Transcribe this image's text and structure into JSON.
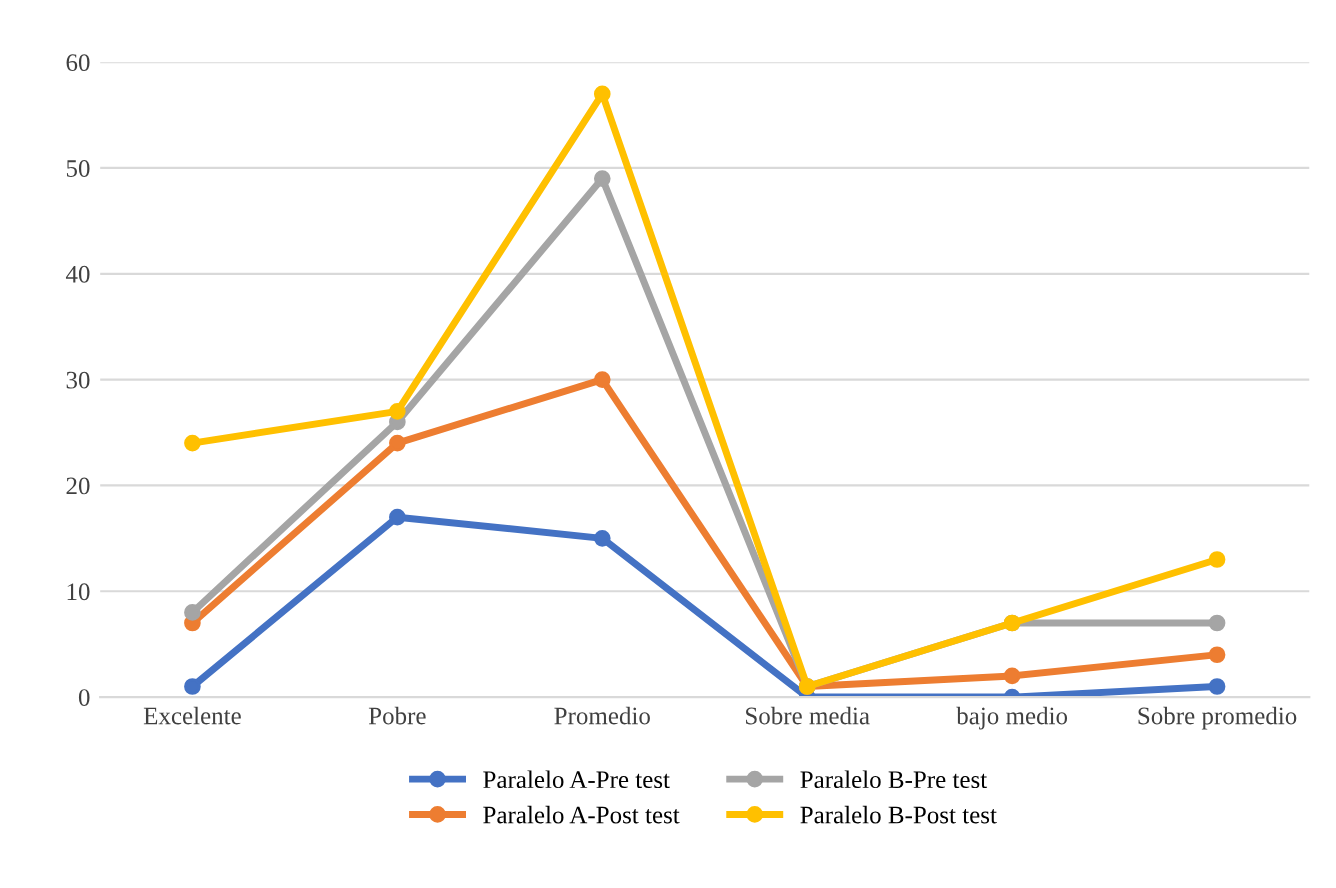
{
  "chart_data": {
    "type": "line",
    "categories": [
      "Excelente",
      "Pobre",
      "Promedio",
      "Sobre media",
      "bajo medio",
      "Sobre promedio"
    ],
    "series": [
      {
        "name": "Paralelo A-Pre test",
        "color": "#4472c4",
        "values": [
          1,
          17,
          15,
          0,
          0,
          1
        ]
      },
      {
        "name": "Paralelo A-Post test",
        "color": "#ed7d31",
        "values": [
          7,
          24,
          30,
          1,
          2,
          4
        ]
      },
      {
        "name": "Paralelo B-Pre test",
        "color": "#a5a5a5",
        "values": [
          8,
          26,
          49,
          1,
          7,
          7
        ]
      },
      {
        "name": "Paralelo B-Post test",
        "color": "#ffc000",
        "values": [
          24,
          27,
          57,
          1,
          7,
          13
        ]
      }
    ],
    "ylim": [
      0,
      60
    ],
    "yticks": [
      0,
      10,
      20,
      30,
      40,
      50,
      60
    ],
    "grid": "y",
    "legend": "bottom",
    "marker": "circle",
    "line_style": "solid"
  }
}
